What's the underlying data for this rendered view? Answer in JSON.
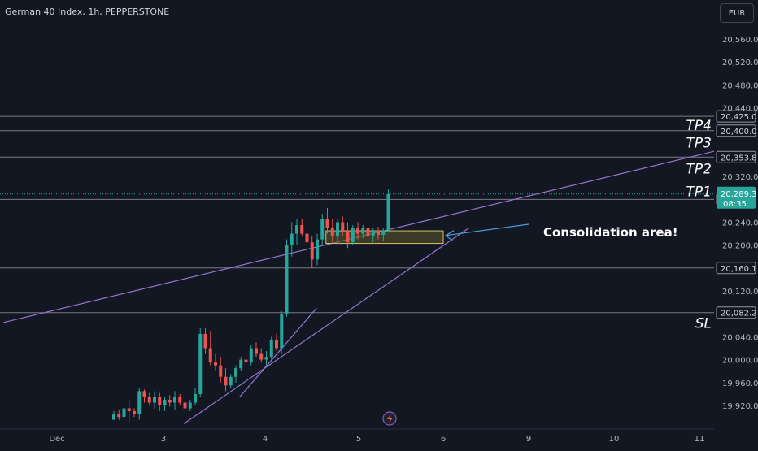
{
  "header": {
    "title": "German 40 Index, 1h, PEPPERSTONE",
    "currency": "EUR"
  },
  "colors": {
    "background": "#131722",
    "up": "#26a69a",
    "down": "#ef5350",
    "trendline": "#9575cd",
    "level_line": "#787b86",
    "box_fill": "#5c5a2c",
    "box_border": "#d4c36a",
    "arrow": "#4a9fd8",
    "text": "#d1d4dc"
  },
  "chart_data": {
    "type": "candlestick",
    "y_axis": {
      "ticks": [
        {
          "value": 20560,
          "label": "20,560.0"
        },
        {
          "value": 20520,
          "label": "20,520.0"
        },
        {
          "value": 20480,
          "label": "20,480.0"
        },
        {
          "value": 20440,
          "label": "20,440.0"
        },
        {
          "value": 20320,
          "label": "20,320.0"
        },
        {
          "value": 20240,
          "label": "20,240.0"
        },
        {
          "value": 20200,
          "label": "20,200.0"
        },
        {
          "value": 20120,
          "label": "20,120.0"
        },
        {
          "value": 20040,
          "label": "20,040.0"
        },
        {
          "value": 20000,
          "label": "20,000.0"
        },
        {
          "value": 19960,
          "label": "19,960.0"
        },
        {
          "value": 19920,
          "label": "19,920.0"
        }
      ],
      "range": [
        19888,
        20608
      ]
    },
    "x_axis": {
      "labels": [
        {
          "label": "Dec",
          "day": 1.9
        },
        {
          "label": "3",
          "day": 3
        },
        {
          "label": "4",
          "day": 4
        },
        {
          "label": "5",
          "day": 5
        },
        {
          "label": "6",
          "day": 6
        },
        {
          "label": "9",
          "day": 7
        },
        {
          "label": "10",
          "day": 8
        },
        {
          "label": "11",
          "day": 9
        }
      ]
    },
    "levels": [
      {
        "value": 20425.0,
        "label": "20,425.0",
        "tag": ""
      },
      {
        "value": 20400.0,
        "label": "20,400.0",
        "tag": "TP4"
      },
      {
        "value": 20353.8,
        "label": "20,353.8",
        "tag": "TP3"
      },
      {
        "value": 20280.0,
        "label": "20,280.0",
        "tag": "TP1"
      },
      {
        "value": 20160.1,
        "label": "20,160.1",
        "tag": ""
      },
      {
        "value": 20082.2,
        "label": "20,082.2",
        "tag": "SL"
      }
    ],
    "extra_tags": [
      {
        "tag": "TP2",
        "value": 20322
      }
    ],
    "current_price": {
      "value": 20289.3,
      "label": "20,289.3",
      "countdown": "08:35"
    },
    "annotation": {
      "text": "Consolidation area!"
    },
    "consolidation_box": {
      "day_start": 4.65,
      "day_end": 6.0,
      "price_low": 20203,
      "price_high": 20225
    },
    "trendlines": [
      {
        "from": {
          "day": 1.35,
          "price": 20065
        },
        "to": {
          "day": 9.2,
          "price": 20365
        }
      },
      {
        "from": {
          "day": 3.2,
          "price": 19888
        },
        "to": {
          "day": 6.3,
          "price": 20230
        }
      },
      {
        "from": {
          "day": 3.75,
          "price": 19935
        },
        "to": {
          "day": 4.55,
          "price": 20090
        }
      }
    ],
    "candles": [
      [
        19895,
        19910,
        19895,
        19905
      ],
      [
        19905,
        19912,
        19895,
        19900
      ],
      [
        19900,
        19918,
        19895,
        19915
      ],
      [
        19915,
        19930,
        19892,
        19910
      ],
      [
        19910,
        19915,
        19900,
        19905
      ],
      [
        19905,
        19950,
        19895,
        19945
      ],
      [
        19945,
        19948,
        19925,
        19935
      ],
      [
        19935,
        19942,
        19920,
        19925
      ],
      [
        19925,
        19945,
        19915,
        19935
      ],
      [
        19935,
        19942,
        19910,
        19920
      ],
      [
        19920,
        19935,
        19910,
        19930
      ],
      [
        19930,
        19938,
        19918,
        19925
      ],
      [
        19925,
        19945,
        19912,
        19935
      ],
      [
        19935,
        19940,
        19920,
        19925
      ],
      [
        19925,
        19935,
        19912,
        19915
      ],
      [
        19915,
        19930,
        19910,
        19925
      ],
      [
        19925,
        19950,
        19920,
        19940
      ],
      [
        19940,
        20055,
        19935,
        20045
      ],
      [
        20045,
        20055,
        20010,
        20020
      ],
      [
        20020,
        20050,
        19990,
        19995
      ],
      [
        19995,
        20010,
        19980,
        19990
      ],
      [
        19990,
        20005,
        19960,
        19970
      ],
      [
        19970,
        19985,
        19945,
        19955
      ],
      [
        19955,
        19975,
        19950,
        19970
      ],
      [
        19970,
        19990,
        19960,
        19985
      ],
      [
        19985,
        20005,
        19980,
        20000
      ],
      [
        20000,
        20015,
        19985,
        19995
      ],
      [
        19995,
        20025,
        19990,
        20020
      ],
      [
        20020,
        20030,
        20005,
        20010
      ],
      [
        20010,
        20020,
        19995,
        20000
      ],
      [
        20000,
        20015,
        19990,
        20005
      ],
      [
        20005,
        20040,
        20000,
        20035
      ],
      [
        20035,
        20045,
        20015,
        20020
      ],
      [
        20020,
        20085,
        20010,
        20080
      ],
      [
        20080,
        20210,
        20075,
        20200
      ],
      [
        20200,
        20240,
        20180,
        20220
      ],
      [
        20220,
        20245,
        20200,
        20235
      ],
      [
        20235,
        20245,
        20215,
        20220
      ],
      [
        20220,
        20240,
        20195,
        20205
      ],
      [
        20205,
        20215,
        20160,
        20175
      ],
      [
        20175,
        20220,
        20165,
        20210
      ],
      [
        20210,
        20255,
        20200,
        20245
      ],
      [
        20245,
        20265,
        20220,
        20230
      ],
      [
        20230,
        20245,
        20205,
        20215
      ],
      [
        20215,
        20245,
        20205,
        20240
      ],
      [
        20240,
        20250,
        20215,
        20225
      ],
      [
        20225,
        20240,
        20195,
        20205
      ],
      [
        20205,
        20235,
        20200,
        20230
      ],
      [
        20230,
        20240,
        20210,
        20220
      ],
      [
        20220,
        20235,
        20212,
        20230
      ],
      [
        20230,
        20238,
        20210,
        20215
      ],
      [
        20215,
        20230,
        20205,
        20225
      ],
      [
        20225,
        20232,
        20210,
        20218
      ],
      [
        20218,
        20230,
        20208,
        20226
      ],
      [
        20226,
        20298,
        20222,
        20289.3
      ]
    ]
  }
}
